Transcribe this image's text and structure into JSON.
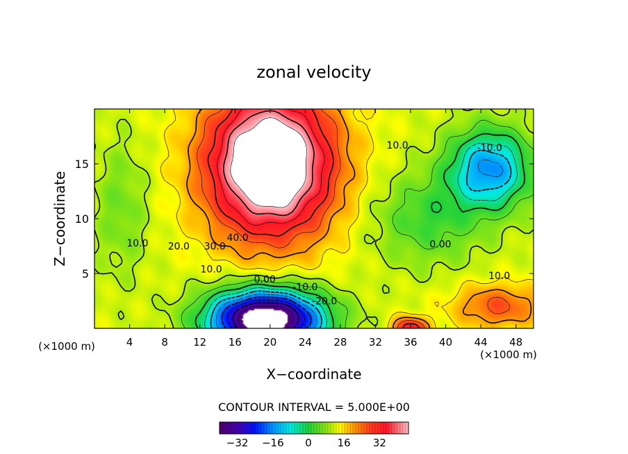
{
  "chart_data": {
    "type": "contour",
    "title": "zonal velocity",
    "xlabel": "X−coordinate",
    "ylabel": "Z−coordinate",
    "x_unit_left": "(×1000 m)",
    "x_unit_right": "(×1000 m)",
    "xlim": [
      0,
      50
    ],
    "ylim": [
      0,
      20
    ],
    "x_ticks": [
      4,
      8,
      12,
      16,
      20,
      24,
      28,
      32,
      36,
      40,
      44,
      48
    ],
    "y_ticks": [
      5,
      10,
      15
    ],
    "contour_interval_text": "CONTOUR INTERVAL = 5.000E+00",
    "colorbar": {
      "range": [
        -40,
        45
      ],
      "ticks": [
        -32,
        -16,
        0,
        16,
        32
      ],
      "tick_labels": [
        "−32",
        "−16",
        "0",
        "16",
        "32"
      ],
      "colormap": "rainbow (violet-blue-cyan-green-yellow-red-pink)"
    },
    "contour_labels": [
      {
        "text": "40.0",
        "x": 16.3,
        "z": 8.3
      },
      {
        "text": "30.0",
        "x": 13.7,
        "z": 7.5
      },
      {
        "text": "20.0",
        "x": 9.6,
        "z": 7.5
      },
      {
        "text": "10.0",
        "x": 4.9,
        "z": 7.8
      },
      {
        "text": "10.0",
        "x": 13.3,
        "z": 5.4
      },
      {
        "text": "0.00",
        "x": 19.4,
        "z": 4.5
      },
      {
        "text": "-10.0",
        "x": 24.0,
        "z": 3.8
      },
      {
        "text": "-20.0",
        "x": 26.2,
        "z": 2.5
      },
      {
        "text": "10.0",
        "x": 34.5,
        "z": 16.7
      },
      {
        "text": "-10.0",
        "x": 45.0,
        "z": 16.5
      },
      {
        "text": "0.00",
        "x": 39.4,
        "z": 7.7
      },
      {
        "text": "10.0",
        "x": 46.1,
        "z": 4.8
      }
    ],
    "features": [
      {
        "kind": "max",
        "x": 20,
        "z": 15,
        "value_above": 45
      },
      {
        "kind": "min",
        "x": 20,
        "z": 1,
        "value_below": -40
      },
      {
        "kind": "min",
        "x": 45,
        "z": 14.5,
        "value": -15
      },
      {
        "kind": "max",
        "x": 46,
        "z": 2,
        "value": 25
      }
    ]
  }
}
